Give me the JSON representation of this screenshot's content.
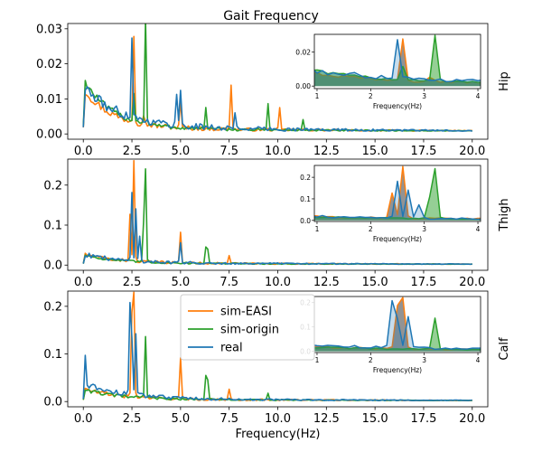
{
  "figure": {
    "title": "Gait Frequency",
    "xlabel": "Frequency(Hz)",
    "inset_xlabel": "Frequency(Hz)"
  },
  "colors": {
    "sim-EASI": "#ff7f0e",
    "sim-origin": "#2ca02c",
    "real": "#1f77b4",
    "fill": "#808080"
  },
  "legend": {
    "placement": "upper-center of bottom panel",
    "entries": [
      "sim-EASI",
      "sim-origin",
      "real"
    ]
  },
  "chart_data": [
    {
      "type": "line",
      "row_label": "Hip",
      "xlim": [
        -0.8,
        20.8
      ],
      "ylim": [
        -0.0015,
        0.0315
      ],
      "xticks": [
        0,
        2.5,
        5,
        7.5,
        10,
        12.5,
        15,
        17.5,
        20
      ],
      "xtick_labels": [
        "0.0",
        "2.5",
        "5.0",
        "7.5",
        "10.0",
        "12.5",
        "15.0",
        "17.5",
        "20.0"
      ],
      "yticks": [
        0,
        0.01,
        0.02,
        0.03
      ],
      "ytick_labels": [
        "0.00",
        "0.01",
        "0.02",
        "0.03"
      ],
      "baseline": 0.0008,
      "series": [
        {
          "name": "sim-EASI",
          "base": 0.011,
          "decay": 0.7,
          "noise": 0.0025,
          "peaks": [
            [
              2.6,
              0.025
            ],
            [
              3.1,
              0.003
            ],
            [
              5.0,
              0.007
            ],
            [
              7.6,
              0.013
            ],
            [
              10.1,
              0.006
            ]
          ]
        },
        {
          "name": "sim-origin",
          "base": 0.014,
          "decay": 0.7,
          "noise": 0.002,
          "peaks": [
            [
              2.6,
              0.008
            ],
            [
              3.2,
              0.0295
            ],
            [
              6.3,
              0.006
            ],
            [
              9.5,
              0.0075
            ],
            [
              11.3,
              0.003
            ]
          ]
        },
        {
          "name": "real",
          "base": 0.011,
          "decay": 0.55,
          "noise": 0.0035,
          "peaks": [
            [
              2.5,
              0.023
            ],
            [
              4.8,
              0.009
            ],
            [
              5.0,
              0.01
            ],
            [
              7.8,
              0.004
            ]
          ]
        }
      ],
      "inset": {
        "xlim": [
          0.95,
          4.05
        ],
        "ylim": [
          -0.0015,
          0.0305
        ],
        "xticks": [
          1,
          2,
          3,
          4
        ],
        "xtick_labels": [
          "1",
          "2",
          "3",
          "4"
        ],
        "yticks": [
          0,
          0.02
        ],
        "ytick_labels": [
          "0.00",
          "0.02"
        ]
      }
    },
    {
      "type": "line",
      "row_label": "Thigh",
      "xlim": [
        -0.8,
        20.8
      ],
      "ylim": [
        -0.013,
        0.265
      ],
      "xticks": [
        0,
        2.5,
        5,
        7.5,
        10,
        12.5,
        15,
        17.5,
        20
      ],
      "xtick_labels": [
        "0.0",
        "2.5",
        "5.0",
        "7.5",
        "10.0",
        "12.5",
        "15.0",
        "17.5",
        "20.0"
      ],
      "yticks": [
        0,
        0.1,
        0.2
      ],
      "ytick_labels": [
        "0.0",
        "0.1",
        "0.2"
      ],
      "baseline": 0.002,
      "series": [
        {
          "name": "sim-EASI",
          "base": 0.02,
          "decay": 0.6,
          "noise": 0.01,
          "peaks": [
            [
              2.6,
              0.25
            ],
            [
              2.4,
              0.12
            ],
            [
              5.0,
              0.075
            ],
            [
              7.5,
              0.02
            ]
          ]
        },
        {
          "name": "sim-origin",
          "base": 0.02,
          "decay": 0.6,
          "noise": 0.008,
          "peaks": [
            [
              3.2,
              0.23
            ],
            [
              3.1,
              0.09
            ],
            [
              6.3,
              0.04
            ],
            [
              6.4,
              0.035
            ]
          ]
        },
        {
          "name": "real",
          "base": 0.02,
          "decay": 0.6,
          "noise": 0.012,
          "peaks": [
            [
              2.5,
              0.175
            ],
            [
              2.7,
              0.13
            ],
            [
              5.0,
              0.05
            ],
            [
              2.9,
              0.06
            ]
          ]
        }
      ],
      "inset": {
        "xlim": [
          0.95,
          4.05
        ],
        "ylim": [
          -0.005,
          0.255
        ],
        "xticks": [
          1,
          2,
          3,
          4
        ],
        "xtick_labels": [
          "1",
          "2",
          "3",
          "4"
        ],
        "yticks": [
          0,
          0.1,
          0.2
        ],
        "ytick_labels": [
          "0.0",
          "0.1",
          "0.2"
        ]
      }
    },
    {
      "type": "line",
      "row_label": "Calf",
      "xlim": [
        -0.8,
        20.8
      ],
      "ylim": [
        -0.011,
        0.232
      ],
      "xticks": [
        0,
        2.5,
        5,
        7.5,
        10,
        12.5,
        15,
        17.5,
        20
      ],
      "xtick_labels": [
        "0.0",
        "2.5",
        "5.0",
        "7.5",
        "10.0",
        "12.5",
        "15.0",
        "17.5",
        "20.0"
      ],
      "yticks": [
        0,
        0.1,
        0.2
      ],
      "ytick_labels": [
        "0.0",
        "0.1",
        "0.2"
      ],
      "baseline": 0.002,
      "series": [
        {
          "name": "sim-EASI",
          "base": 0.02,
          "decay": 0.6,
          "noise": 0.01,
          "peaks": [
            [
              2.6,
              0.215
            ],
            [
              2.5,
              0.17
            ],
            [
              5.0,
              0.085
            ],
            [
              7.5,
              0.02
            ]
          ]
        },
        {
          "name": "sim-origin",
          "base": 0.02,
          "decay": 0.6,
          "noise": 0.008,
          "peaks": [
            [
              3.2,
              0.13
            ],
            [
              6.3,
              0.05
            ],
            [
              6.4,
              0.04
            ],
            [
              9.5,
              0.015
            ]
          ]
        },
        {
          "name": "real",
          "base": 0.03,
          "decay": 0.5,
          "noise": 0.012,
          "peaks": [
            [
              0.1,
              0.055
            ],
            [
              2.4,
              0.19
            ],
            [
              2.7,
              0.13
            ],
            [
              2.5,
              0.11
            ]
          ]
        }
      ],
      "inset": {
        "xlim": [
          0.95,
          4.05
        ],
        "ylim": [
          -0.005,
          0.225
        ],
        "xticks": [
          1,
          2,
          3,
          4
        ],
        "xtick_labels": [
          "1",
          "2",
          "3",
          "4"
        ],
        "yticks": [
          0,
          0.1,
          0.2
        ],
        "ytick_labels": [
          "0.0",
          "0.1",
          "0.2"
        ]
      }
    }
  ]
}
